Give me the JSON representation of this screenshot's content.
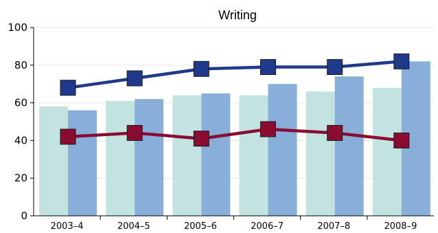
{
  "chart_data": {
    "type": "bar",
    "title": "Writing",
    "xlabel": "",
    "ylabel": "",
    "ylim": [
      0,
      100
    ],
    "yticks": [
      0,
      20,
      40,
      60,
      80,
      100
    ],
    "grid": true,
    "categories": [
      "2003–4",
      "2004–5",
      "2005–6",
      "2006–7",
      "2007–8",
      "2008–9"
    ],
    "series": [
      {
        "type": "bar",
        "color": "#c2e3e0",
        "values": [
          58,
          61,
          64,
          64,
          66,
          68
        ]
      },
      {
        "type": "bar",
        "color": "#87afd9",
        "values": [
          56,
          62,
          65,
          70,
          74,
          82
        ]
      },
      {
        "type": "line",
        "color": "#1f3a8a",
        "marker": "square",
        "values": [
          68,
          73,
          78,
          79,
          79,
          82
        ]
      },
      {
        "type": "line",
        "color": "#8a0d31",
        "marker": "square",
        "values": [
          42,
          44,
          41,
          46,
          44,
          40
        ]
      }
    ]
  }
}
